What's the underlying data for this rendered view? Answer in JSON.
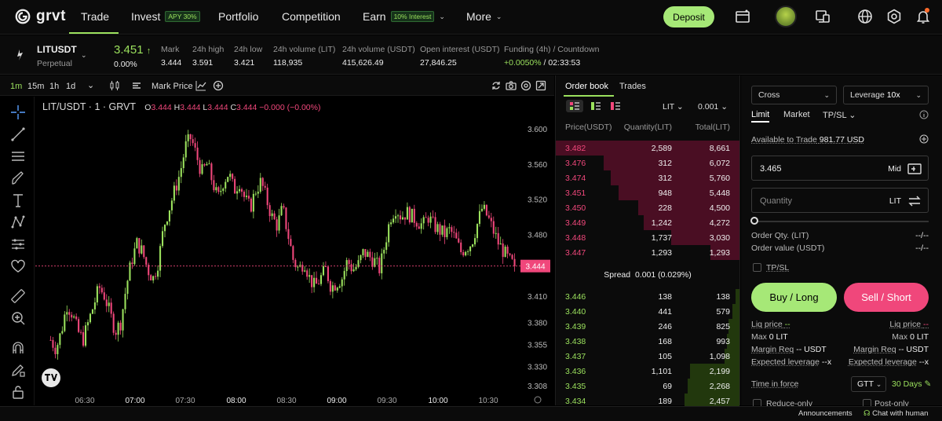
{
  "nav": {
    "logo": "grvt",
    "items": [
      {
        "label": "Trade"
      },
      {
        "label": "Invest",
        "badge": "APY 30%"
      },
      {
        "label": "Portfolio"
      },
      {
        "label": "Competition"
      },
      {
        "label": "Earn",
        "badge": "10% Interest"
      },
      {
        "label": "More"
      }
    ],
    "deposit": "Deposit"
  },
  "ticker": {
    "symbol": "LITUSDT",
    "type": "Perpetual",
    "price": "3.451",
    "change": "0.00%",
    "stats": [
      {
        "label": "Mark",
        "value": "3.444"
      },
      {
        "label": "24h high",
        "value": "3.591"
      },
      {
        "label": "24h low",
        "value": "3.421"
      },
      {
        "label": "24h volume (LIT)",
        "value": "118,935"
      },
      {
        "label": "24h volume (USDT)",
        "value": "415,626.49"
      },
      {
        "label": "Open interest (USDT)",
        "value": "27,846.25"
      }
    ],
    "funding_label": "Funding (4h) / Countdown",
    "funding_rate": "+0.0050%",
    "funding_countdown": "/ 02:33:53"
  },
  "chart_toolbar": {
    "intervals": [
      "1m",
      "15m",
      "1h",
      "1d"
    ],
    "active_interval": "1m",
    "price_type": "Mark Price"
  },
  "chart_data": {
    "type": "candlestick",
    "title": "LIT/USDT · 1 · GRVT",
    "ohlc_legend": {
      "O": "3.444",
      "H": "3.444",
      "L": "3.444",
      "C": "3.444",
      "change": "−0.000 (−0.00%)"
    },
    "y_ticks": [
      "3.600",
      "3.560",
      "3.520",
      "3.480",
      "3.410",
      "3.380",
      "3.355",
      "3.330",
      "3.308"
    ],
    "x_ticks": [
      "06:30",
      "07:00",
      "07:30",
      "08:00",
      "08:30",
      "09:00",
      "09:30",
      "10:00",
      "10:30"
    ],
    "current_price": "3.444",
    "ylim": [
      3.308,
      3.6
    ],
    "close_path": [
      3.36,
      3.35,
      3.37,
      3.4,
      3.39,
      3.37,
      3.36,
      3.38,
      3.4,
      3.42,
      3.41,
      3.39,
      3.37,
      3.38,
      3.42,
      3.45,
      3.47,
      3.46,
      3.44,
      3.43,
      3.45,
      3.49,
      3.51,
      3.53,
      3.55,
      3.58,
      3.59,
      3.57,
      3.55,
      3.56,
      3.54,
      3.52,
      3.54,
      3.55,
      3.53,
      3.54,
      3.52,
      3.51,
      3.53,
      3.54,
      3.52,
      3.5,
      3.49,
      3.51,
      3.48,
      3.45,
      3.44,
      3.45,
      3.43,
      3.42,
      3.43,
      3.44,
      3.42,
      3.425,
      3.43,
      3.45,
      3.44,
      3.445,
      3.46,
      3.455,
      3.45,
      3.44,
      3.47,
      3.5,
      3.51,
      3.5,
      3.505,
      3.5,
      3.495,
      3.49,
      3.5,
      3.49,
      3.485,
      3.48,
      3.485,
      3.475,
      3.46,
      3.465,
      3.47,
      3.49,
      3.51,
      3.5,
      3.485,
      3.47,
      3.46,
      3.45,
      3.444
    ]
  },
  "orderbook": {
    "tabs": [
      "Order book",
      "Trades"
    ],
    "unit": "LIT",
    "tick": "0.001",
    "headers": [
      "Price(USDT)",
      "Quantity(LIT)",
      "Total(LIT)"
    ],
    "asks": [
      {
        "price": "3.482",
        "qty": "2,589",
        "total": "8,661",
        "depth": 1.0
      },
      {
        "price": "3.476",
        "qty": "312",
        "total": "6,072",
        "depth": 0.74
      },
      {
        "price": "3.474",
        "qty": "312",
        "total": "5,760",
        "depth": 0.7
      },
      {
        "price": "3.451",
        "qty": "948",
        "total": "5,448",
        "depth": 0.66
      },
      {
        "price": "3.450",
        "qty": "228",
        "total": "4,500",
        "depth": 0.55
      },
      {
        "price": "3.449",
        "qty": "1,242",
        "total": "4,272",
        "depth": 0.52
      },
      {
        "price": "3.448",
        "qty": "1,737",
        "total": "3,030",
        "depth": 0.37
      },
      {
        "price": "3.447",
        "qty": "1,293",
        "total": "1,293",
        "depth": 0.16
      }
    ],
    "spread_label": "Spread",
    "spread_value": "0.001 (0.029%)",
    "bids": [
      {
        "price": "3.446",
        "qty": "138",
        "total": "138",
        "depth": 0.02
      },
      {
        "price": "3.440",
        "qty": "441",
        "total": "579",
        "depth": 0.04
      },
      {
        "price": "3.439",
        "qty": "246",
        "total": "825",
        "depth": 0.06
      },
      {
        "price": "3.438",
        "qty": "168",
        "total": "993",
        "depth": 0.07
      },
      {
        "price": "3.437",
        "qty": "105",
        "total": "1,098",
        "depth": 0.08
      },
      {
        "price": "3.436",
        "qty": "1,101",
        "total": "2,199",
        "depth": 0.27
      },
      {
        "price": "3.435",
        "qty": "69",
        "total": "2,268",
        "depth": 0.28
      },
      {
        "price": "3.434",
        "qty": "189",
        "total": "2,457",
        "depth": 0.3
      }
    ]
  },
  "orderform": {
    "margin_mode": "Cross",
    "leverage_label": "Leverage",
    "leverage_value": "10x",
    "tabs": [
      "Limit",
      "Market",
      "TP/SL"
    ],
    "available_label": "Available to Trade",
    "available_value": "981.77 USD",
    "price_value": "3.465",
    "price_suffix": "Mid",
    "quantity_placeholder": "Quantity",
    "quantity_unit": "LIT",
    "order_qty_label": "Order Qty. (LIT)",
    "order_qty_value": "--/--",
    "order_value_label": "Order value (USDT)",
    "order_value_value": "--/--",
    "tpsl_label": "TP/SL",
    "buy": "Buy / Long",
    "sell": "Sell / Short",
    "liq_label": "Liq price",
    "liq_value": "--",
    "max_label": "Max",
    "max_value": "0 LIT",
    "margin_label": "Margin Req",
    "margin_value": "-- USDT",
    "exp_lev_label": "Expected leverage",
    "exp_lev_value": "--x",
    "tif_label": "Time in force",
    "tif_value": "GTT",
    "tif_days": "30 Days",
    "reduce_only": "Reduce-only",
    "post_only": "Post-only"
  },
  "footer": {
    "announcements": "Announcements",
    "chat": "Chat with human"
  },
  "colors": {
    "accent": "#a6e877",
    "sell": "#f0477b",
    "bg": "#000000"
  }
}
